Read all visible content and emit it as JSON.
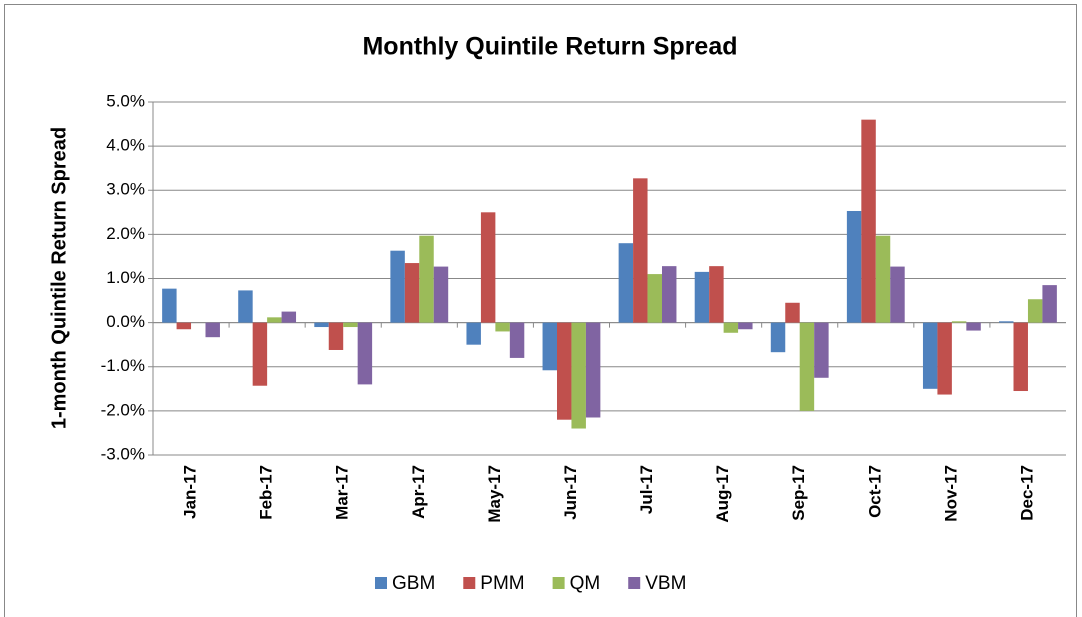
{
  "chart_data": {
    "type": "bar",
    "title": "Monthly Quintile Return Spread",
    "y_label": "1-month Quintile Return Spread",
    "categories": [
      "Jan-17",
      "Feb-17",
      "Mar-17",
      "Apr-17",
      "May-17",
      "Jun-17",
      "Jul-17",
      "Aug-17",
      "Sep-17",
      "Oct-17",
      "Nov-17",
      "Dec-17"
    ],
    "series": [
      {
        "name": "GBM",
        "color": "#4f81bd",
        "values": [
          0.77,
          0.73,
          -0.1,
          1.63,
          -0.5,
          -1.08,
          1.8,
          1.15,
          -0.67,
          2.53,
          -1.5,
          0.03
        ]
      },
      {
        "name": "PMM",
        "color": "#c0504d",
        "values": [
          -0.15,
          -1.43,
          -0.62,
          1.35,
          2.5,
          -2.2,
          3.27,
          1.28,
          0.45,
          4.6,
          -1.63,
          -1.55
        ]
      },
      {
        "name": "QM",
        "color": "#9bbb59",
        "values": [
          0,
          0.12,
          -0.1,
          1.97,
          -0.2,
          -2.4,
          1.1,
          -0.23,
          -2.0,
          1.97,
          0.03,
          0.53
        ]
      },
      {
        "name": "VBM",
        "color": "#8064a2",
        "values": [
          -0.33,
          0.25,
          -1.4,
          1.27,
          -0.8,
          -2.15,
          1.28,
          -0.15,
          -1.25,
          1.27,
          -0.18,
          0.85
        ]
      }
    ],
    "ylim": [
      -3,
      5
    ],
    "yticks": [
      {
        "value": -3,
        "label": "-3.0%"
      },
      {
        "value": -2,
        "label": "-2.0%"
      },
      {
        "value": -1,
        "label": "-1.0%"
      },
      {
        "value": 0,
        "label": "0.0%"
      },
      {
        "value": 1,
        "label": "1.0%"
      },
      {
        "value": 2,
        "label": "2.0%"
      },
      {
        "value": 3,
        "label": "3.0%"
      },
      {
        "value": 4,
        "label": "4.0%"
      },
      {
        "value": 5,
        "label": "5.0%"
      }
    ],
    "grid": true,
    "legend": "bottom"
  }
}
